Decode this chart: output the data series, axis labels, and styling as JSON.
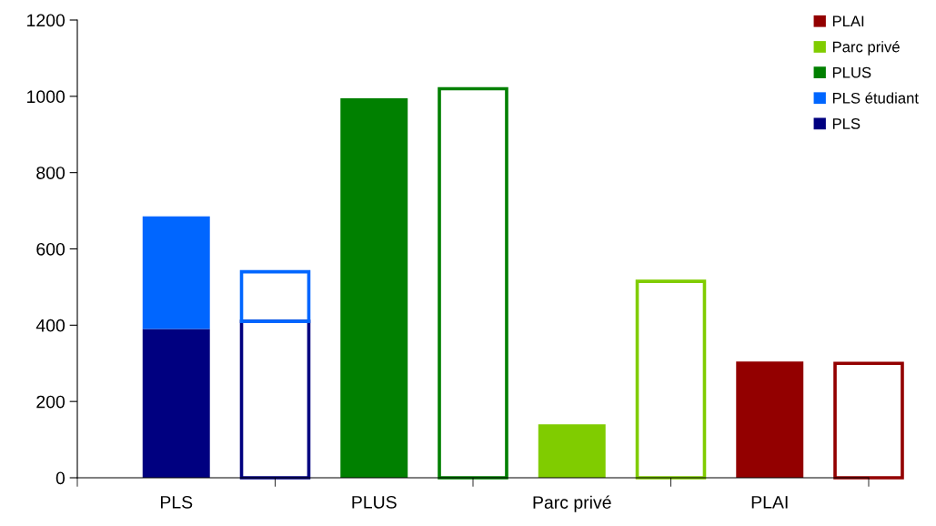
{
  "chart_data": {
    "type": "bar",
    "stacked": true,
    "categories": [
      "PLS",
      null,
      "PLUS",
      null,
      "Parc privé",
      null,
      "PLAI",
      null
    ],
    "series": [
      {
        "name": "PLS",
        "color": "#000080",
        "values": [
          390,
          null,
          null,
          null,
          null,
          null,
          null,
          null
        ]
      },
      {
        "name": "PLS étudiant",
        "color": "#0066ff",
        "values": [
          295,
          null,
          null,
          null,
          null,
          null,
          null,
          null
        ]
      },
      {
        "name": "PLUS",
        "color": "#008000",
        "values": [
          null,
          null,
          995,
          null,
          null,
          null,
          null,
          null
        ]
      },
      {
        "name": "Parc privé",
        "color": "#80cc00",
        "values": [
          null,
          null,
          null,
          null,
          140,
          null,
          null,
          null
        ]
      },
      {
        "name": "PLAI",
        "color": "#930000",
        "values": [
          null,
          null,
          null,
          null,
          null,
          null,
          305,
          null
        ]
      },
      {
        "color": "#000080",
        "line_style": "solid",
        "values": [
          null,
          410,
          null,
          null,
          null,
          null,
          null,
          null
        ]
      },
      {
        "color": "#0066ff",
        "line_style": "solid",
        "values": [
          null,
          130,
          null,
          null,
          null,
          null,
          null,
          null
        ]
      },
      {
        "color": "#008000",
        "line_style": "solid",
        "values": [
          null,
          null,
          null,
          1020,
          null,
          null,
          null,
          null
        ]
      },
      {
        "color": "#80cc00",
        "line_style": "solid",
        "values": [
          null,
          null,
          null,
          null,
          null,
          515,
          null,
          null
        ]
      },
      {
        "color": "#930000",
        "line_style": "solid",
        "values": [
          null,
          null,
          null,
          null,
          null,
          null,
          null,
          300
        ]
      }
    ],
    "ylim": [
      0,
      1200
    ],
    "yticks": [
      0,
      200,
      400,
      600,
      800,
      1000,
      1200
    ],
    "grid": false,
    "legend": "top right"
  }
}
